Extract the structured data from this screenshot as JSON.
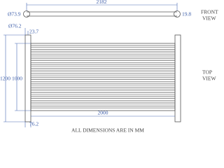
{
  "front_view": {
    "length": "2182",
    "tube_diameter": "Ø73.9",
    "offset": "19.8",
    "label_line1": "FRONT",
    "label_line2": "VIEW"
  },
  "top_view": {
    "header_diameter": "Ø76.2",
    "edge": "23.7",
    "overall_height": "1200",
    "core_height": "1000",
    "core_width": "2000",
    "header_offset": "76.2",
    "label_line1": "TOP",
    "label_line2": "VIEW"
  },
  "footer": {
    "note": "ALL DIMENSIONS ARE IN MM"
  }
}
